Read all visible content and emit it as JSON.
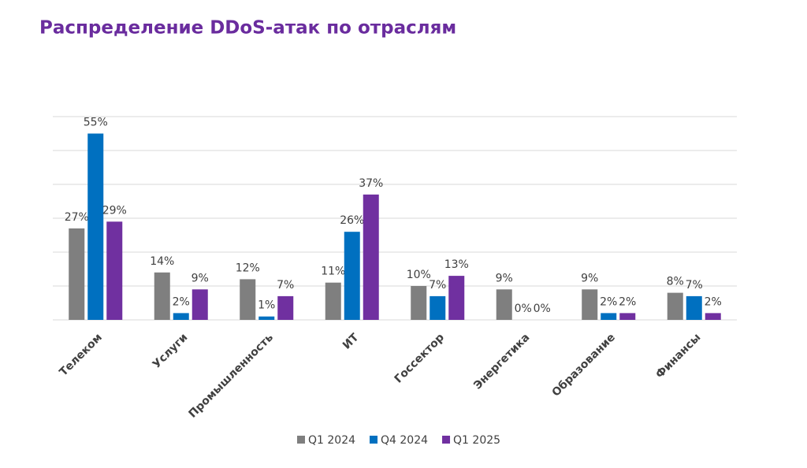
{
  "chart_data": {
    "type": "bar",
    "title": "Распределение DDoS-атак по отраслям",
    "categories": [
      "Телеком",
      "Услуги",
      "Промышленность",
      "ИТ",
      "Госсектор",
      "Энергетика",
      "Образование",
      "Финансы"
    ],
    "series": [
      {
        "name": "Q1 2024",
        "color": "#7f7f7f",
        "values": [
          27,
          14,
          12,
          11,
          10,
          9,
          9,
          8
        ],
        "value_labels": [
          "27%",
          "14%",
          "12%",
          "11%",
          "10%",
          "9%",
          "9%",
          "8%"
        ]
      },
      {
        "name": "Q4 2024",
        "color": "#0070c0",
        "values": [
          55,
          2,
          1,
          26,
          7,
          0,
          2,
          7
        ],
        "value_labels": [
          "55%",
          "2%",
          "1%",
          "26%",
          "7%",
          "0%",
          "2%",
          "7%"
        ]
      },
      {
        "name": "Q1 2025",
        "color": "#7030a0",
        "values": [
          29,
          9,
          7,
          37,
          13,
          0,
          2,
          2
        ],
        "value_labels": [
          "29%",
          "9%",
          "7%",
          "37%",
          "13%",
          "0%",
          "2%",
          "2%"
        ]
      }
    ],
    "ylim": [
      0,
      60
    ],
    "yticks": [
      0,
      10,
      20,
      30,
      40,
      50,
      60
    ],
    "grid": true,
    "legend": "bottom"
  }
}
